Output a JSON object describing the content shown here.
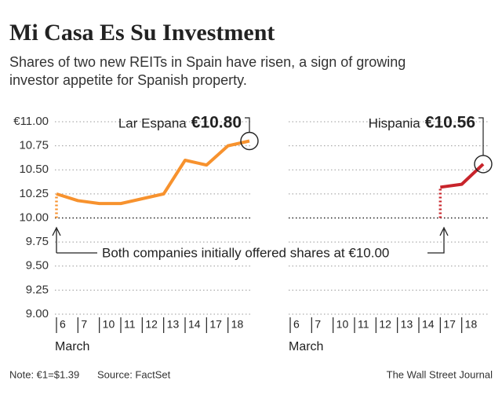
{
  "title": "Mi Casa Es Su Investment",
  "subtitle": [
    "Shares of two new REITs in Spain have risen, a sign of growing",
    "investor appetite for Spanish property."
  ],
  "annotation": "Both companies initially offered shares at €10.00",
  "offer_price": 10,
  "note": "Note: €1=$1.39",
  "source": "Source: FactSet",
  "credit": "The Wall Street Journal",
  "chart_data": [
    {
      "type": "line",
      "categories": [
        "6",
        "7",
        "10",
        "11",
        "12",
        "13",
        "14",
        "17",
        "18",
        null
      ],
      "xlabel": "March",
      "series": [
        {
          "name": "Lar Espana",
          "color": "#f7922e",
          "values": [
            10.25,
            10.18,
            10.15,
            10.15,
            10.2,
            10.25,
            10.6,
            10.55,
            10.75,
            10.8
          ],
          "value_labels": [
            null,
            null,
            null,
            null,
            null,
            null,
            null,
            null,
            null,
            "€10.80"
          ]
        }
      ],
      "ylim": [
        9,
        11
      ],
      "yticks": [
        {
          "value": 11,
          "label": "€11.00"
        },
        10.75,
        {
          "value": 10.5,
          "label": "10.50"
        },
        10.25,
        {
          "value": 10,
          "label": "10.00"
        },
        9.75,
        {
          "value": 9.5,
          "label": "9.50"
        },
        9.25,
        {
          "value": 9,
          "label": "9.00"
        }
      ],
      "grid": true
    },
    {
      "type": "line",
      "categories": [
        "6",
        "7",
        "10",
        "11",
        "12",
        "13",
        "14",
        "17",
        "18",
        null
      ],
      "xlabel": "March",
      "series": [
        {
          "name": "Hispania",
          "color": "#c8242b",
          "values": [
            null,
            null,
            null,
            null,
            null,
            null,
            null,
            10.32,
            10.35,
            10.56
          ],
          "value_labels": [
            null,
            null,
            null,
            null,
            null,
            null,
            null,
            null,
            null,
            "€10.56"
          ]
        }
      ],
      "ylim": [
        9,
        11
      ],
      "yticks": [
        11,
        10.75,
        10.5,
        10.25,
        10,
        9.75,
        9.5,
        9.25,
        9
      ],
      "grid": true
    }
  ]
}
